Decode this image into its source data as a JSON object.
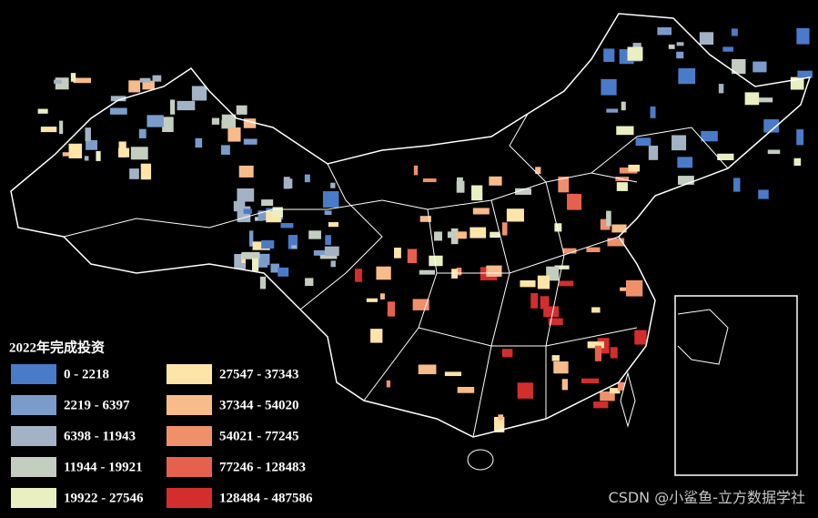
{
  "legend": {
    "title": "2022年完成投资",
    "items": [
      {
        "label": "0 - 2218",
        "color": "#4a7bc8"
      },
      {
        "label": "2219 - 6397",
        "color": "#7b9ccb"
      },
      {
        "label": "6398 - 11943",
        "color": "#a3b3c5"
      },
      {
        "label": "11944 - 19921",
        "color": "#c3cdc0"
      },
      {
        "label": "19922 - 27546",
        "color": "#eaefc2"
      },
      {
        "label": "27547 - 37343",
        "color": "#fde4a8"
      },
      {
        "label": "37344 - 54020",
        "color": "#f8bb8a"
      },
      {
        "label": "54021 - 77245",
        "color": "#f0906a"
      },
      {
        "label": "77246 - 128483",
        "color": "#e5604d"
      },
      {
        "label": "128484 - 487586",
        "color": "#d42d2d"
      }
    ]
  },
  "watermark": "CSDN @小鲨鱼-立方数据学社"
}
